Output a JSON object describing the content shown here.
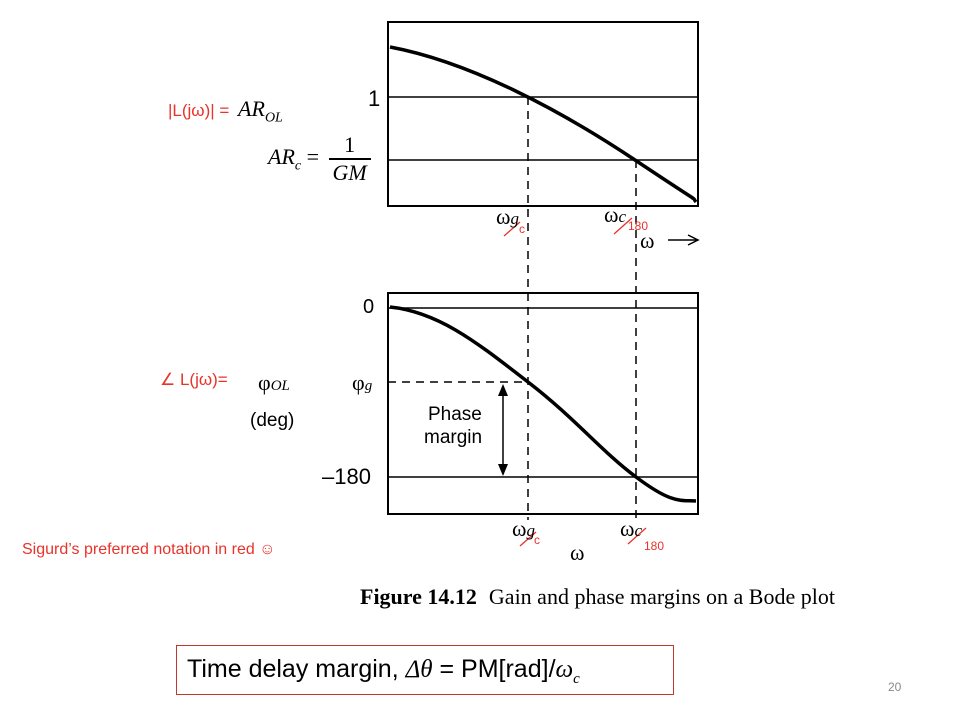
{
  "labels": {
    "magnitude_prefix": "|L(jω)| = ",
    "magnitude_symbol": "AR",
    "magnitude_sub": "OL",
    "arc_lhs": "AR",
    "arc_sub": "c",
    "arc_eq": " =",
    "arc_num": "1",
    "arc_den": "GM",
    "phase_prefix": "∠ L(jω)=",
    "phase_symbol": "φ",
    "phase_sub": "OL",
    "phase_unit": "(deg)"
  },
  "axes": {
    "mag_tick": "1",
    "phase_tick_top": "0",
    "phase_tick_bottom": "–180",
    "phi_g": "φ",
    "phi_g_sub": "g",
    "omega": "ω"
  },
  "markers": {
    "omega_g": "ω",
    "omega_g_sub": "g",
    "omega_c": "ω",
    "omega_c_sub": "c",
    "red_c": "c",
    "red_180": "180"
  },
  "phase_margin": {
    "line1": "Phase",
    "line2": "margin"
  },
  "note": "Sigurd’s preferred notation in red ☺",
  "caption": {
    "figure": "Figure 14.12",
    "text": "Gain and phase margins on a Bode plot"
  },
  "time_delay": {
    "prefix": "Time delay margin, ",
    "delta": "Δθ",
    "middle": " = PM[rad]/",
    "omega": "ω",
    "omega_sub": "c"
  },
  "page_number": "20",
  "colors": {
    "accent": "#e8332a",
    "line": "#000000",
    "box_border": "#c0392b"
  }
}
